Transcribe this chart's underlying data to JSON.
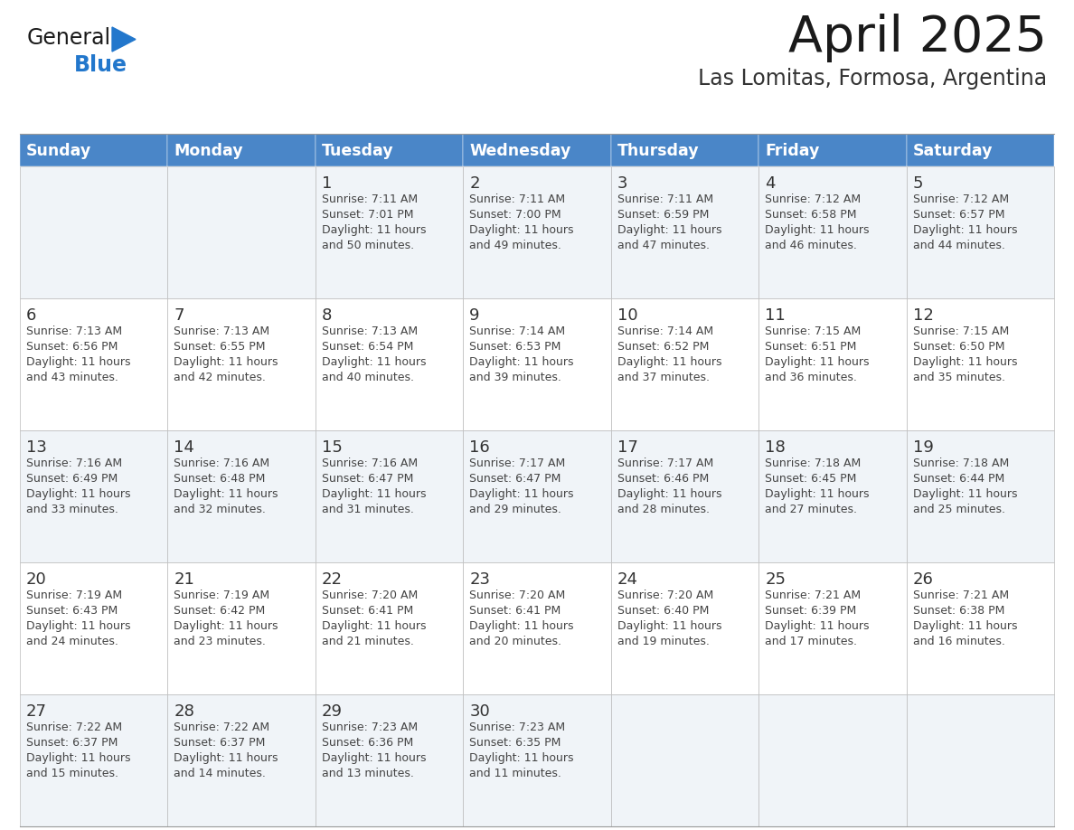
{
  "title": "April 2025",
  "subtitle": "Las Lomitas, Formosa, Argentina",
  "days_of_week": [
    "Sunday",
    "Monday",
    "Tuesday",
    "Wednesday",
    "Thursday",
    "Friday",
    "Saturday"
  ],
  "header_bg": "#4a86c8",
  "header_text": "#FFFFFF",
  "row_bg_odd": "#F0F4F8",
  "row_bg_even": "#FFFFFF",
  "cell_border": "#BBBBBB",
  "day_num_color": "#333333",
  "text_color": "#444444",
  "title_color": "#1a1a1a",
  "subtitle_color": "#333333",
  "logo_general_color": "#1a1a1a",
  "logo_blue_color": "#2277CC",
  "calendar": [
    [
      {
        "day": "",
        "sunrise": "",
        "sunset": "",
        "daylight": ""
      },
      {
        "day": "",
        "sunrise": "",
        "sunset": "",
        "daylight": ""
      },
      {
        "day": "1",
        "sunrise": "7:11 AM",
        "sunset": "7:01 PM",
        "daylight": "11 hours and 50 minutes."
      },
      {
        "day": "2",
        "sunrise": "7:11 AM",
        "sunset": "7:00 PM",
        "daylight": "11 hours and 49 minutes."
      },
      {
        "day": "3",
        "sunrise": "7:11 AM",
        "sunset": "6:59 PM",
        "daylight": "11 hours and 47 minutes."
      },
      {
        "day": "4",
        "sunrise": "7:12 AM",
        "sunset": "6:58 PM",
        "daylight": "11 hours and 46 minutes."
      },
      {
        "day": "5",
        "sunrise": "7:12 AM",
        "sunset": "6:57 PM",
        "daylight": "11 hours and 44 minutes."
      }
    ],
    [
      {
        "day": "6",
        "sunrise": "7:13 AM",
        "sunset": "6:56 PM",
        "daylight": "11 hours and 43 minutes."
      },
      {
        "day": "7",
        "sunrise": "7:13 AM",
        "sunset": "6:55 PM",
        "daylight": "11 hours and 42 minutes."
      },
      {
        "day": "8",
        "sunrise": "7:13 AM",
        "sunset": "6:54 PM",
        "daylight": "11 hours and 40 minutes."
      },
      {
        "day": "9",
        "sunrise": "7:14 AM",
        "sunset": "6:53 PM",
        "daylight": "11 hours and 39 minutes."
      },
      {
        "day": "10",
        "sunrise": "7:14 AM",
        "sunset": "6:52 PM",
        "daylight": "11 hours and 37 minutes."
      },
      {
        "day": "11",
        "sunrise": "7:15 AM",
        "sunset": "6:51 PM",
        "daylight": "11 hours and 36 minutes."
      },
      {
        "day": "12",
        "sunrise": "7:15 AM",
        "sunset": "6:50 PM",
        "daylight": "11 hours and 35 minutes."
      }
    ],
    [
      {
        "day": "13",
        "sunrise": "7:16 AM",
        "sunset": "6:49 PM",
        "daylight": "11 hours and 33 minutes."
      },
      {
        "day": "14",
        "sunrise": "7:16 AM",
        "sunset": "6:48 PM",
        "daylight": "11 hours and 32 minutes."
      },
      {
        "day": "15",
        "sunrise": "7:16 AM",
        "sunset": "6:47 PM",
        "daylight": "11 hours and 31 minutes."
      },
      {
        "day": "16",
        "sunrise": "7:17 AM",
        "sunset": "6:47 PM",
        "daylight": "11 hours and 29 minutes."
      },
      {
        "day": "17",
        "sunrise": "7:17 AM",
        "sunset": "6:46 PM",
        "daylight": "11 hours and 28 minutes."
      },
      {
        "day": "18",
        "sunrise": "7:18 AM",
        "sunset": "6:45 PM",
        "daylight": "11 hours and 27 minutes."
      },
      {
        "day": "19",
        "sunrise": "7:18 AM",
        "sunset": "6:44 PM",
        "daylight": "11 hours and 25 minutes."
      }
    ],
    [
      {
        "day": "20",
        "sunrise": "7:19 AM",
        "sunset": "6:43 PM",
        "daylight": "11 hours and 24 minutes."
      },
      {
        "day": "21",
        "sunrise": "7:19 AM",
        "sunset": "6:42 PM",
        "daylight": "11 hours and 23 minutes."
      },
      {
        "day": "22",
        "sunrise": "7:20 AM",
        "sunset": "6:41 PM",
        "daylight": "11 hours and 21 minutes."
      },
      {
        "day": "23",
        "sunrise": "7:20 AM",
        "sunset": "6:41 PM",
        "daylight": "11 hours and 20 minutes."
      },
      {
        "day": "24",
        "sunrise": "7:20 AM",
        "sunset": "6:40 PM",
        "daylight": "11 hours and 19 minutes."
      },
      {
        "day": "25",
        "sunrise": "7:21 AM",
        "sunset": "6:39 PM",
        "daylight": "11 hours and 17 minutes."
      },
      {
        "day": "26",
        "sunrise": "7:21 AM",
        "sunset": "6:38 PM",
        "daylight": "11 hours and 16 minutes."
      }
    ],
    [
      {
        "day": "27",
        "sunrise": "7:22 AM",
        "sunset": "6:37 PM",
        "daylight": "11 hours and 15 minutes."
      },
      {
        "day": "28",
        "sunrise": "7:22 AM",
        "sunset": "6:37 PM",
        "daylight": "11 hours and 14 minutes."
      },
      {
        "day": "29",
        "sunrise": "7:23 AM",
        "sunset": "6:36 PM",
        "daylight": "11 hours and 13 minutes."
      },
      {
        "day": "30",
        "sunrise": "7:23 AM",
        "sunset": "6:35 PM",
        "daylight": "11 hours and 11 minutes."
      },
      {
        "day": "",
        "sunrise": "",
        "sunset": "",
        "daylight": ""
      },
      {
        "day": "",
        "sunrise": "",
        "sunset": "",
        "daylight": ""
      },
      {
        "day": "",
        "sunrise": "",
        "sunset": "",
        "daylight": ""
      }
    ]
  ]
}
